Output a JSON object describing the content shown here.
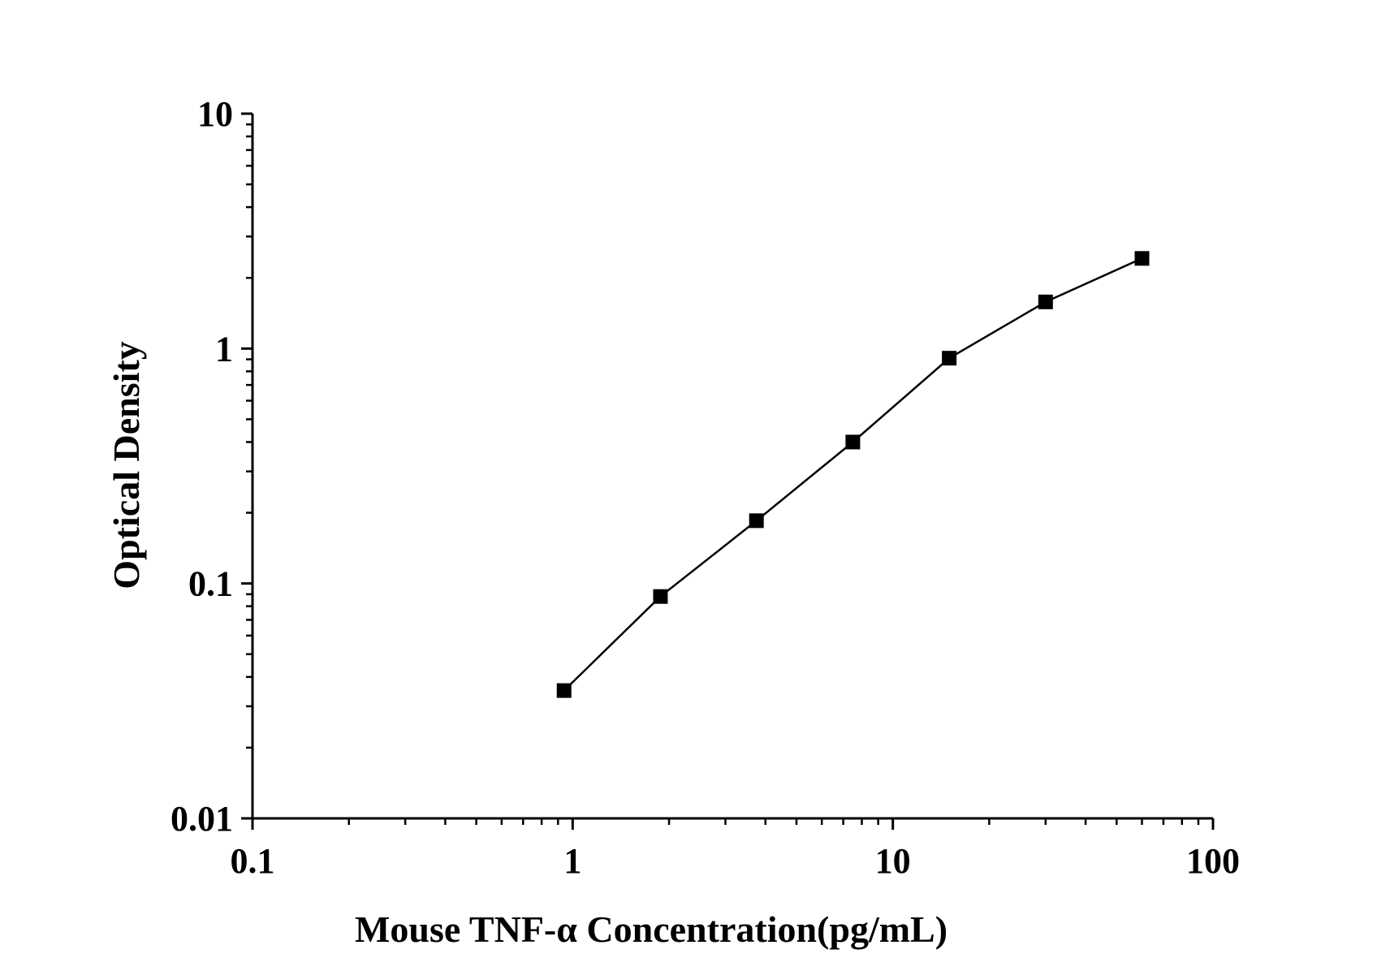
{
  "chart_data": {
    "type": "line",
    "title": "",
    "xlabel": "Mouse TNF-α Concentration(pg/mL)",
    "ylabel": "Optical Density",
    "xscale": "log",
    "yscale": "log",
    "xlim": [
      0.1,
      100
    ],
    "ylim": [
      0.01,
      10
    ],
    "grid": false,
    "legend": "none",
    "x_ticks": [
      "0.1",
      "1",
      "10",
      "100"
    ],
    "y_ticks": [
      "0.01",
      "0.1",
      "1",
      "10"
    ],
    "marker": "square",
    "line_color": "#000000",
    "series": [
      {
        "x": [
          0.94,
          1.88,
          3.75,
          7.5,
          15,
          30,
          60
        ],
        "y": [
          0.035,
          0.088,
          0.185,
          0.4,
          0.91,
          1.58,
          2.42
        ]
      }
    ]
  }
}
